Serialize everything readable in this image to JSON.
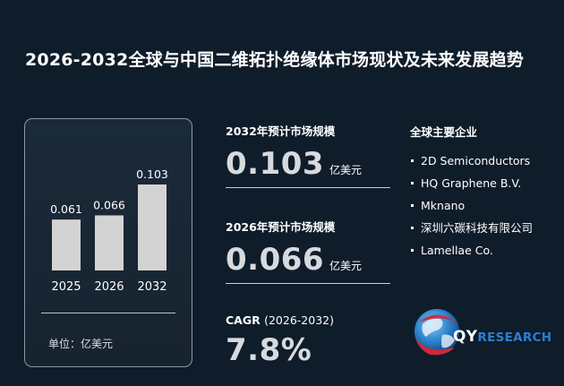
{
  "title": "2026-2032全球与中国二维拓扑绝缘体市场现状及未来发展趋势",
  "chart_data": {
    "type": "bar",
    "categories": [
      "2025",
      "2026",
      "2032"
    ],
    "values": [
      0.061,
      0.066,
      0.103
    ],
    "value_labels": [
      "0.061",
      "0.066",
      "0.103"
    ],
    "unit_label": "单位：亿美元",
    "bar_color": "#d3d3d3"
  },
  "stats": {
    "market_2032": {
      "label": "2032年预计市场规模",
      "value": "0.103",
      "unit": "亿美元"
    },
    "market_2026": {
      "label": "2026年预计市场规模",
      "value": "0.066",
      "unit": "亿美元"
    },
    "cagr": {
      "label": "CAGR",
      "period": "(2026-2032)",
      "value": "7.8%"
    }
  },
  "companies": {
    "title": "全球主要企业",
    "items": [
      "2D Semiconductors",
      "HQ Graphene B.V.",
      "Mknano",
      "深圳六碳科技有限公司",
      "Lamellae Co."
    ]
  },
  "logo": {
    "prefix": "QY",
    "suffix": "RESEARCH",
    "icon": "globe-icon"
  },
  "colors": {
    "background": "#0f1c2a",
    "accent": "#d0283c",
    "logo_blue": "#2c7fd0"
  }
}
